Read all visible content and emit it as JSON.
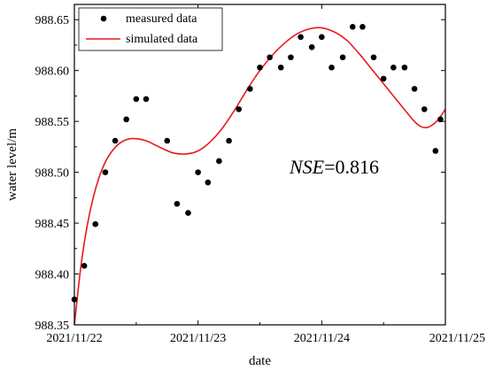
{
  "chart_data": {
    "type": "scatter",
    "xlabel": "date",
    "ylabel": "water level/m",
    "xlim": [
      0,
      3
    ],
    "ylim": [
      988.35,
      988.665
    ],
    "x_ticks": [
      {
        "value": 0,
        "label": "2021/11/22"
      },
      {
        "value": 1,
        "label": "2021/11/23"
      },
      {
        "value": 2,
        "label": "2021/11/24"
      },
      {
        "value": 3,
        "label": "2021/11/25"
      }
    ],
    "y_ticks": [
      988.35,
      988.4,
      988.45,
      988.5,
      988.55,
      988.6,
      988.65
    ],
    "y_tick_labels": [
      "988.35",
      "988.40",
      "988.45",
      "988.50",
      "988.55",
      "988.60",
      "988.65"
    ],
    "legend_position": "top-left",
    "series": [
      {
        "name": "measured data",
        "style": "markers",
        "color": "#000000",
        "x": [
          0.0,
          0.08,
          0.17,
          0.25,
          0.33,
          0.42,
          0.5,
          0.58,
          0.75,
          0.83,
          0.92,
          1.0,
          1.08,
          1.17,
          1.25,
          1.33,
          1.42,
          1.5,
          1.58,
          1.67,
          1.75,
          1.83,
          1.92,
          2.0,
          2.08,
          2.17,
          2.25,
          2.33,
          2.42,
          2.5,
          2.58,
          2.67,
          2.75,
          2.83,
          2.92,
          2.96
        ],
        "y": [
          988.375,
          988.408,
          988.449,
          988.5,
          988.531,
          988.552,
          988.572,
          988.572,
          988.531,
          988.469,
          988.46,
          988.5,
          988.49,
          988.511,
          988.531,
          988.562,
          988.582,
          988.603,
          988.613,
          988.603,
          988.613,
          988.633,
          988.623,
          988.633,
          988.603,
          988.613,
          988.643,
          988.643,
          988.613,
          988.592,
          988.603,
          988.603,
          988.582,
          988.562,
          988.521,
          988.552
        ]
      },
      {
        "name": "simulated data",
        "style": "line",
        "color": "#e8191e",
        "x": [
          0.0,
          0.05,
          0.1,
          0.15,
          0.2,
          0.25,
          0.3,
          0.35,
          0.4,
          0.45,
          0.5,
          0.55,
          0.6,
          0.65,
          0.7,
          0.8,
          0.9,
          1.0,
          1.1,
          1.2,
          1.3,
          1.4,
          1.5,
          1.6,
          1.7,
          1.8,
          1.9,
          2.0,
          2.1,
          2.2,
          2.3,
          2.4,
          2.5,
          2.6,
          2.7,
          2.75,
          2.8,
          2.85,
          2.9,
          2.95,
          3.0
        ],
        "y": [
          988.35,
          988.405,
          988.445,
          988.474,
          988.495,
          988.51,
          988.52,
          988.527,
          988.531,
          988.533,
          988.533,
          988.532,
          988.53,
          988.527,
          988.524,
          988.519,
          988.518,
          988.521,
          988.53,
          988.544,
          988.562,
          988.582,
          988.6,
          988.615,
          988.627,
          988.636,
          988.641,
          988.642,
          988.638,
          988.63,
          988.617,
          988.602,
          988.587,
          988.572,
          988.557,
          988.55,
          988.545,
          988.544,
          988.547,
          988.553,
          988.562
        ]
      }
    ],
    "annotation": {
      "italic": "NSE",
      "rest": "=0.816"
    }
  }
}
